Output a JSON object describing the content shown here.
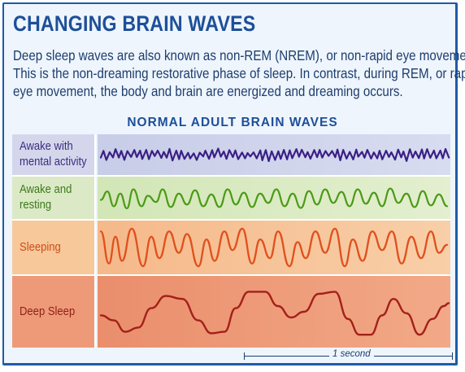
{
  "title": "CHANGING BRAIN WAVES",
  "intro": {
    "line1": "Deep sleep waves are also known as non-REM (NREM), or non-rapid eye movement.",
    "line2": "This is the non-dreaming restorative phase of sleep. In contrast, during REM, or rapid",
    "line3": "eye movement, the body and brain are energized and dreaming occurs."
  },
  "subtitle": "NORMAL ADULT BRAIN WAVES",
  "rows": [
    {
      "label_line1": "Awake with",
      "label_line2": "mental activity",
      "wave_color": "#3a1f86"
    },
    {
      "label_line1": "Awake and",
      "label_line2": "resting",
      "wave_color": "#4c9a18"
    },
    {
      "label_line1": "Sleeping",
      "label_line2": "",
      "wave_color": "#e0501e"
    },
    {
      "label_line1": "Deep Sleep",
      "label_line2": "",
      "wave_color": "#a3201a"
    }
  ],
  "scale_label": "1 second",
  "colors": {
    "frame": "#1e5ba8",
    "title": "#1d4f99",
    "text": "#1d3d6e"
  }
}
